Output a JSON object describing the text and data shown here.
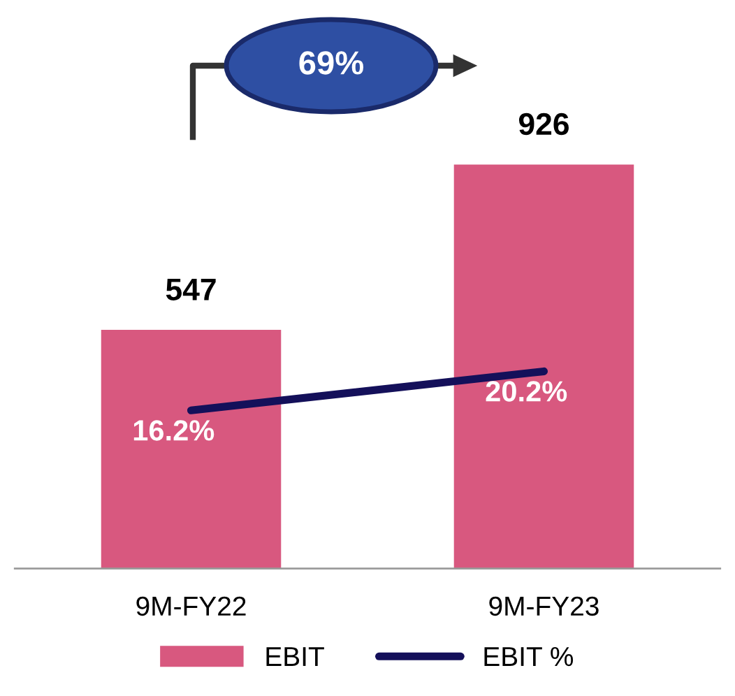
{
  "chart_data": {
    "type": "bar",
    "categories": [
      "9M-FY22",
      "9M-FY23"
    ],
    "series": [
      {
        "name": "EBIT",
        "color": "#d8587f",
        "values": [
          547,
          926
        ]
      },
      {
        "name": "EBIT %",
        "type": "line",
        "axis": "y2",
        "color": "#14105a",
        "values": [
          16.2,
          20.2
        ],
        "value_labels": [
          "16.2%",
          "20.2%"
        ]
      }
    ],
    "data_labels": true,
    "tick_labels": "x",
    "grid": false,
    "legend": "bottom",
    "marker": "none",
    "line_style": "solid",
    "annotations": [
      "69%"
    ]
  }
}
